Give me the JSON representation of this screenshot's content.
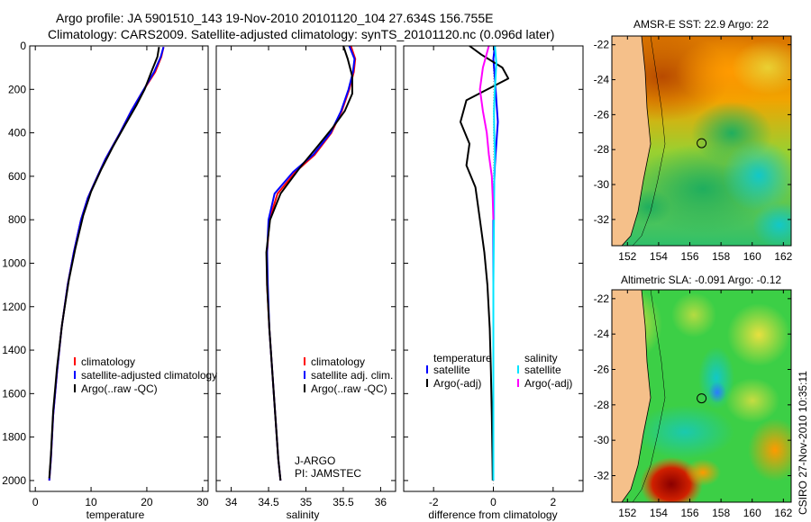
{
  "header": {
    "line1": "Argo profile: JA 5901510_143 19-Nov-2010 20101120_104 27.634S 156.755E",
    "line2": "Climatology: CARS2009. Satellite-adjusted climatology: synTS_20101120.nc (0.096d later)"
  },
  "colors": {
    "climatology": "#ff0000",
    "satellite": "#0000ff",
    "argo": "#000000",
    "sat_salinity": "#00e5ff",
    "argo_salinity": "#ff00ff",
    "land": "#f5c08a"
  },
  "chart_data": [
    {
      "type": "line",
      "id": "temperature",
      "xlabel": "temperature",
      "xlim": [
        -1,
        31
      ],
      "ylim": [
        2050,
        0
      ],
      "xticks": [
        "0",
        "10",
        "20",
        "30"
      ],
      "xtick_values": [
        0,
        10,
        20,
        30
      ],
      "yticks": [
        "0",
        "200",
        "400",
        "600",
        "800",
        "1000",
        "1200",
        "1400",
        "1600",
        "1800",
        "2000"
      ],
      "ytick_values": [
        0,
        200,
        400,
        600,
        800,
        1000,
        1200,
        1400,
        1600,
        1800,
        2000
      ],
      "legend": [
        "climatology",
        "satellite-adjusted climatology",
        "Argo(..raw -QC)"
      ],
      "series": [
        {
          "name": "climatology",
          "color": "#ff0000",
          "x": [
            23.0,
            22.6,
            21.5,
            19.0,
            17.2,
            15.2,
            12.6,
            10.8,
            9.4,
            8.2,
            6.9,
            5.8,
            4.7,
            3.9,
            3.2,
            2.8,
            2.5
          ],
          "y": [
            5,
            50,
            120,
            220,
            300,
            400,
            520,
            620,
            700,
            800,
            950,
            1100,
            1300,
            1500,
            1700,
            1900,
            2000
          ]
        },
        {
          "name": "satellite-adjusted climatology",
          "color": "#0000ff",
          "x": [
            23.0,
            22.5,
            21.3,
            19.0,
            17.2,
            15.2,
            12.6,
            10.8,
            9.4,
            8.2,
            6.9,
            5.8,
            4.7,
            3.9,
            3.2,
            2.8,
            2.5
          ],
          "y": [
            5,
            50,
            120,
            220,
            300,
            400,
            520,
            620,
            700,
            800,
            950,
            1100,
            1300,
            1500,
            1700,
            1900,
            2000
          ]
        },
        {
          "name": "Argo(..raw -QC)",
          "color": "#000000",
          "x": [
            22.2,
            21.9,
            20.8,
            19.6,
            18.2,
            16.2,
            14.0,
            11.8,
            10.0,
            8.6,
            7.2,
            6.0,
            4.8,
            3.9,
            3.2,
            2.8,
            2.5
          ],
          "y": [
            5,
            50,
            120,
            200,
            270,
            360,
            460,
            570,
            670,
            780,
            930,
            1080,
            1280,
            1480,
            1680,
            1880,
            1990
          ]
        }
      ]
    },
    {
      "type": "line",
      "id": "salinity",
      "xlabel": "salinity",
      "xlim": [
        33.8,
        36.2
      ],
      "ylim": [
        2050,
        0
      ],
      "xticks": [
        "34",
        "34.5",
        "35",
        "35.5",
        "36"
      ],
      "xtick_values": [
        34,
        34.5,
        35,
        35.5,
        36
      ],
      "legend": [
        "climatology",
        "satellite adj. clim.",
        "Argo(..raw -QC)"
      ],
      "annotations": [
        "J-ARGO",
        "PI: JAMSTEC"
      ],
      "series": [
        {
          "name": "climatology",
          "color": "#ff0000",
          "x": [
            35.6,
            35.66,
            35.64,
            35.58,
            35.48,
            35.34,
            35.12,
            34.86,
            34.62,
            34.51,
            34.48,
            34.48,
            34.51,
            34.55,
            34.59,
            34.63,
            34.66
          ],
          "y": [
            0,
            60,
            120,
            200,
            300,
            400,
            500,
            580,
            680,
            800,
            950,
            1100,
            1300,
            1500,
            1700,
            1900,
            2000
          ]
        },
        {
          "name": "satellite adj. clim.",
          "color": "#0000ff",
          "x": [
            35.58,
            35.65,
            35.63,
            35.57,
            35.47,
            35.33,
            35.1,
            34.83,
            34.58,
            34.5,
            34.48,
            34.49,
            34.51,
            34.55,
            34.59,
            34.63,
            34.66
          ],
          "y": [
            0,
            60,
            120,
            200,
            300,
            400,
            500,
            580,
            680,
            800,
            950,
            1100,
            1300,
            1500,
            1700,
            1900,
            2000
          ]
        },
        {
          "name": "Argo(..raw -QC)",
          "color": "#000000",
          "x": [
            35.5,
            35.56,
            35.62,
            35.62,
            35.52,
            35.35,
            35.16,
            34.92,
            34.66,
            34.52,
            34.47,
            34.48,
            34.51,
            34.55,
            34.59,
            34.63,
            34.66
          ],
          "y": [
            0,
            60,
            140,
            220,
            300,
            380,
            460,
            560,
            680,
            800,
            950,
            1100,
            1300,
            1500,
            1700,
            1900,
            2000
          ]
        }
      ]
    },
    {
      "type": "line",
      "id": "difference",
      "xlabel": "difference from climatology",
      "xlim": [
        -3,
        3
      ],
      "ylim": [
        2050,
        0
      ],
      "xticks": [
        "-2",
        "0",
        "2"
      ],
      "xtick_values": [
        -2,
        0,
        2
      ],
      "legend_titles": [
        "temperature",
        "salinity"
      ],
      "legend_left": [
        "satellite",
        "Argo(-adj)"
      ],
      "legend_right": [
        "satellite",
        "Argo(-adj)"
      ],
      "series": [
        {
          "name": "temperature satellite",
          "color": "#0000ff",
          "x": [
            0.05,
            0.0,
            0.05,
            0.1,
            0.15,
            0.1,
            0.05,
            0.02,
            0.0,
            0.0,
            0.0,
            0.0,
            0.0
          ],
          "y": [
            0,
            60,
            150,
            250,
            350,
            450,
            550,
            650,
            800,
            1000,
            1300,
            1600,
            2000
          ]
        },
        {
          "name": "temperature Argo(-adj)",
          "color": "#000000",
          "x": [
            -0.8,
            -0.4,
            0.3,
            0.5,
            -0.9,
            -1.1,
            -0.8,
            -0.9,
            -0.6,
            -0.45,
            -0.3,
            -0.2,
            -0.12,
            -0.08,
            -0.05,
            -0.03,
            -0.02
          ],
          "y": [
            0,
            40,
            100,
            150,
            250,
            350,
            450,
            550,
            650,
            800,
            950,
            1100,
            1300,
            1500,
            1700,
            1900,
            2000
          ]
        },
        {
          "name": "salinity satellite",
          "color": "#00e5ff",
          "x": [
            0.05,
            0.1,
            0.05,
            0.02,
            0.03,
            0.05,
            0.03,
            0.02,
            0.0,
            0.0,
            0.0
          ],
          "y": [
            0,
            80,
            200,
            300,
            400,
            500,
            600,
            800,
            1100,
            1500,
            2000
          ]
        },
        {
          "name": "salinity Argo(-adj)",
          "color": "#ff00ff",
          "x": [
            -0.15,
            -0.35,
            -0.45,
            -0.35,
            -0.22,
            -0.15,
            -0.05,
            -0.02,
            0.0
          ],
          "y": [
            0,
            100,
            200,
            300,
            400,
            500,
            600,
            700,
            800
          ]
        }
      ]
    },
    {
      "type": "heatmap",
      "id": "sst-map",
      "title": "AMSR-E SST: 22.9 Argo: 22",
      "xlim": [
        151,
        162.5
      ],
      "ylim": [
        -33.5,
        -21.5
      ],
      "xticks": [
        "152",
        "154",
        "156",
        "158",
        "160",
        "162"
      ],
      "xtick_values": [
        152,
        154,
        156,
        158,
        160,
        162
      ],
      "yticks": [
        "-22",
        "-24",
        "-26",
        "-28",
        "-30",
        "-32"
      ],
      "ytick_values": [
        -22,
        -24,
        -26,
        -28,
        -30,
        -32
      ],
      "argo_position": [
        156.755,
        -27.634
      ]
    },
    {
      "type": "heatmap",
      "id": "sla-map",
      "title": "Altimetric SLA: -0.091 Argo: -0.12",
      "xlim": [
        151,
        162.5
      ],
      "ylim": [
        -33.5,
        -21.5
      ],
      "xticks": [
        "152",
        "154",
        "156",
        "158",
        "160",
        "162"
      ],
      "xtick_values": [
        152,
        154,
        156,
        158,
        160,
        162
      ],
      "yticks": [
        "-22",
        "-24",
        "-26",
        "-28",
        "-30",
        "-32"
      ],
      "ytick_values": [
        -22,
        -24,
        -26,
        -28,
        -30,
        -32
      ],
      "argo_position": [
        156.755,
        -27.634
      ]
    }
  ],
  "credit": "CSIRO 27-Nov-2010 10:35:11"
}
